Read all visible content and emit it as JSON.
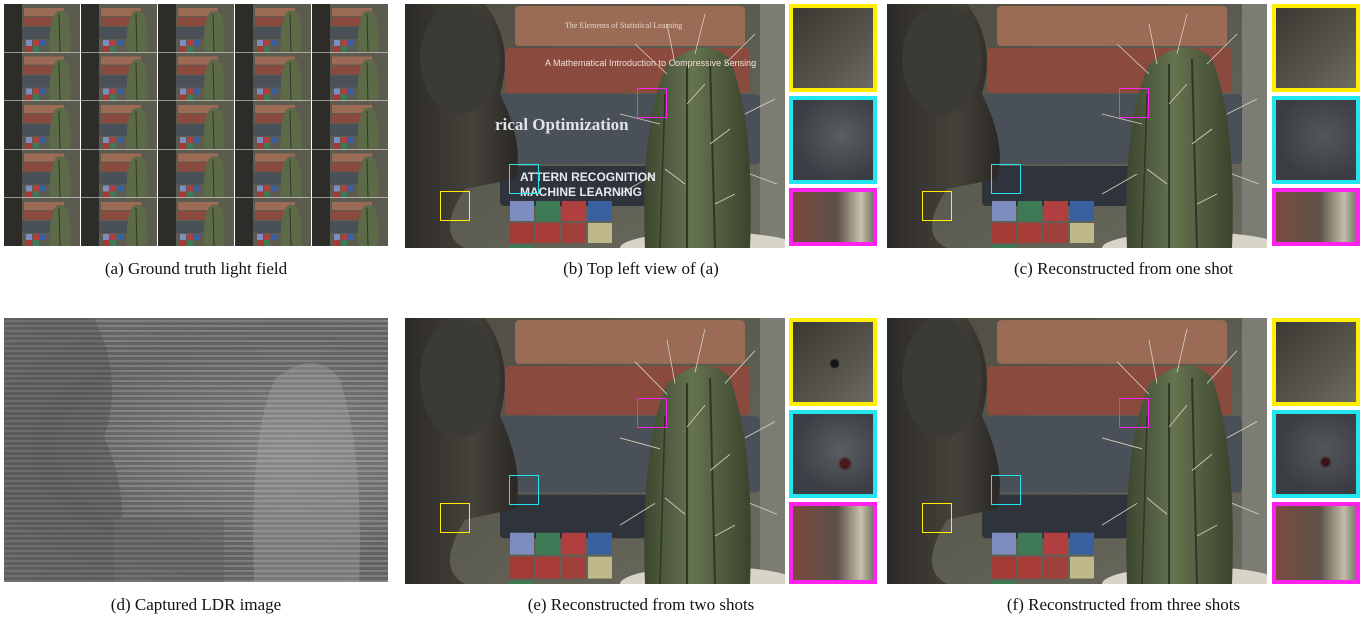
{
  "figure": {
    "panels": [
      {
        "id": "a",
        "caption": "(a) Ground truth light field"
      },
      {
        "id": "b",
        "caption": "(b) Top left view of (a)"
      },
      {
        "id": "c",
        "caption": "(c) Reconstructed from one shot"
      },
      {
        "id": "d",
        "caption": "(d) Captured LDR image"
      },
      {
        "id": "e",
        "caption": "(e) Reconstructed from two shots"
      },
      {
        "id": "f",
        "caption": "(f) Reconstructed from three shots"
      }
    ],
    "inset_colors": {
      "top": "#ffee00",
      "middle": "#22e6ee",
      "bottom": "#ff22ee"
    },
    "book_texts": {
      "book1": "The Elements of Statistical Learning",
      "book2": "A Mathematical Introduction to Compressive Sensing",
      "book3": "rical Optimization",
      "book4a": "ATTERN RECOGNITION",
      "book4b": "MACHINE LEARNING"
    }
  }
}
